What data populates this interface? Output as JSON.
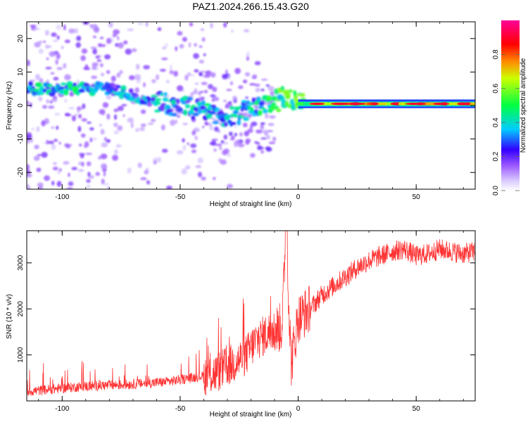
{
  "title": "PAZ1.2024.266.15.43.G20",
  "colorbar": {
    "label": "Normalized spectral amplitude",
    "ticks": [
      "0.0",
      "0.2",
      "0.4",
      "0.6",
      "0.8"
    ],
    "tick_values": [
      0.0,
      0.2,
      0.4,
      0.6,
      0.8
    ],
    "range": [
      0,
      1
    ],
    "colors": [
      "#ffffff",
      "#b48cff",
      "#7700ff",
      "#0000ff",
      "#00ffff",
      "#00ff00",
      "#ffff00",
      "#ff0000",
      "#ff0088"
    ]
  },
  "chart_data": [
    {
      "type": "heatmap",
      "xlabel": "Height of straight line (km)",
      "ylabel": "Frequency (Hz)",
      "xlim": [
        -115,
        75
      ],
      "ylim": [
        -25,
        25
      ],
      "x_ticks": [
        -100,
        -50,
        0,
        50
      ],
      "x_tick_labels": [
        "-100",
        "-50",
        "0",
        "50"
      ],
      "y_ticks": [
        -20,
        -10,
        0,
        10,
        20
      ],
      "y_tick_labels": [
        "-20",
        "-10",
        "0",
        "10",
        "20"
      ],
      "ridge": {
        "x": [
          -112,
          -100,
          -90,
          -80,
          -70,
          -60,
          -50,
          -40,
          -30,
          -20,
          -10,
          -5,
          0,
          10,
          20,
          30,
          40,
          50,
          60,
          75
        ],
        "freq": [
          5,
          5,
          5,
          5,
          3,
          1,
          0,
          -2,
          -3,
          -1,
          1,
          3,
          1,
          0.5,
          0.5,
          0.5,
          0.5,
          0.5,
          0.5,
          0.5
        ],
        "amplitude": [
          0.35,
          0.4,
          0.35,
          0.3,
          0.3,
          0.3,
          0.3,
          0.35,
          0.35,
          0.35,
          0.45,
          0.5,
          0.5,
          0.95,
          0.9,
          0.95,
          0.95,
          0.95,
          0.95,
          0.95
        ]
      }
    },
    {
      "type": "line",
      "xlabel": "Height of straight line (km)",
      "ylabel": "SNR (10 * v/v)",
      "xlim": [
        -115,
        75
      ],
      "ylim": [
        0,
        3700
      ],
      "x_ticks": [
        -100,
        -50,
        0,
        50
      ],
      "x_tick_labels": [
        "-100",
        "-50",
        "0",
        "50"
      ],
      "y_ticks": [
        1000,
        2000,
        3000
      ],
      "y_tick_labels": [
        "1000",
        "2000",
        "3000"
      ],
      "color": "#ff3333",
      "series": [
        {
          "x": [
            -115,
            -105,
            -95,
            -85,
            -75,
            -65,
            -55,
            -45,
            -35,
            -28,
            -22,
            -18,
            -12,
            -7,
            -5,
            -3,
            0,
            5,
            10,
            15,
            20,
            25,
            30,
            35,
            40,
            45,
            50,
            55,
            60,
            65,
            70,
            75
          ],
          "values": [
            200,
            250,
            300,
            330,
            350,
            380,
            420,
            500,
            600,
            800,
            1000,
            1300,
            1500,
            1600,
            3700,
            800,
            1800,
            2000,
            2300,
            2500,
            2700,
            2900,
            3050,
            3150,
            3250,
            3300,
            3150,
            3200,
            3300,
            3250,
            3200,
            3250
          ]
        }
      ]
    }
  ]
}
